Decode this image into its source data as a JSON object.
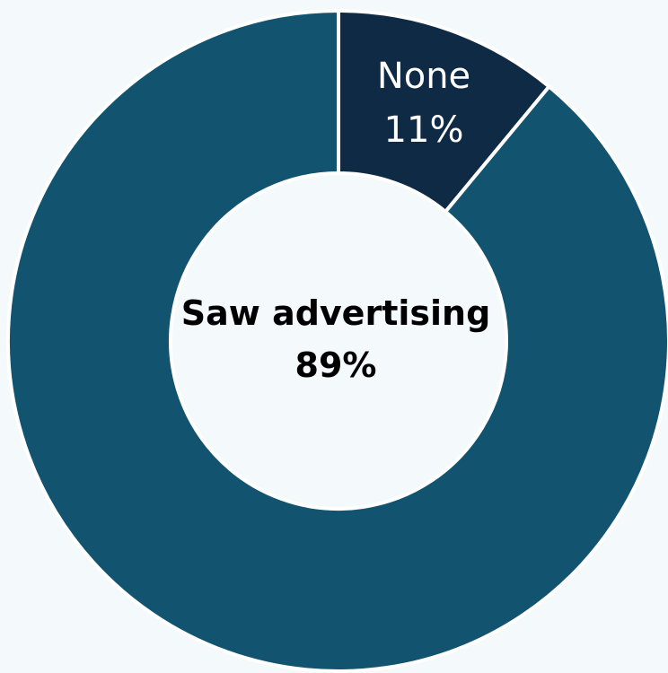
{
  "chart_data": {
    "type": "pie",
    "variant": "donut",
    "categories": [
      "None",
      "Saw advertising"
    ],
    "values": [
      11,
      89
    ],
    "value_labels": [
      "11%",
      "89%"
    ],
    "colors": {
      "None": "#0f2a45",
      "Saw advertising": "#12536f",
      "background": "#f4f9fc",
      "separator": "#ffffff"
    },
    "title": "",
    "legend": "none"
  }
}
